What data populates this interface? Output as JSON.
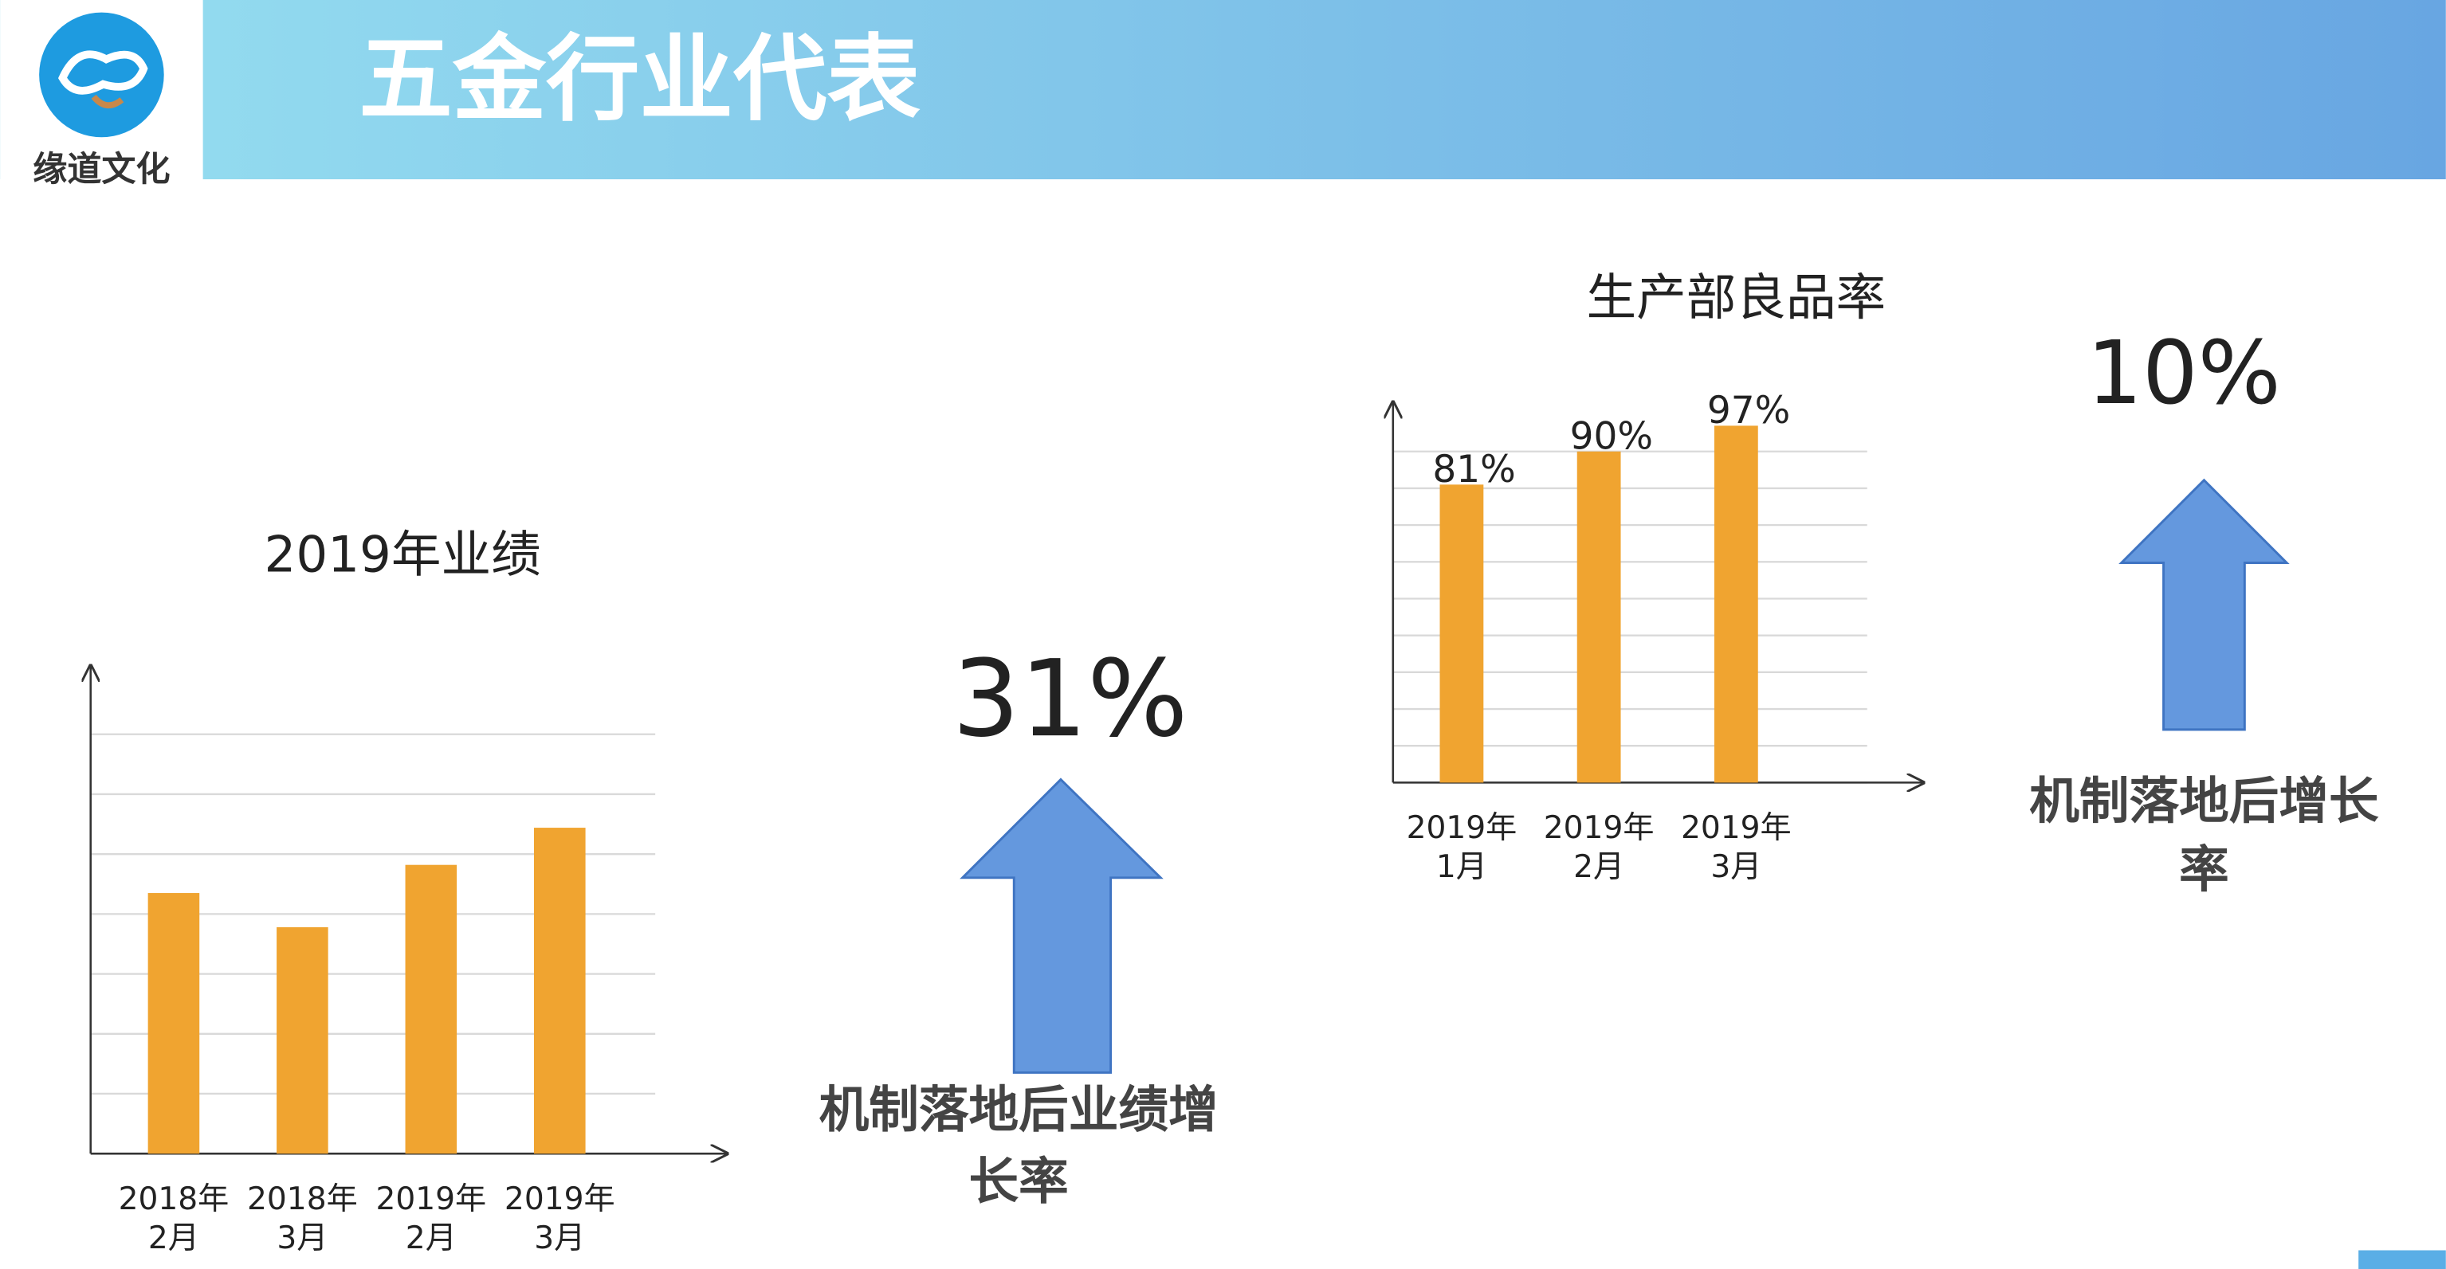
{
  "header": {
    "title": "五金行业代表",
    "logo_text": "缘道文化"
  },
  "chart_data": [
    {
      "type": "bar",
      "title": "2019年业绩",
      "categories": [
        "2018年2月",
        "2018年3月",
        "2019年2月",
        "2019年3月"
      ],
      "values": [
        4.35,
        3.78,
        4.82,
        5.44
      ],
      "color": "#f0a430",
      "ylim": [
        0,
        7
      ],
      "yticks": [
        0,
        1,
        2,
        3,
        4,
        5,
        6,
        7
      ],
      "grid": true
    },
    {
      "type": "bar",
      "title": "生产部良品率",
      "categories": [
        "2019年1月",
        "2019年2月",
        "2019年3月"
      ],
      "values": [
        81,
        90,
        97
      ],
      "value_labels": [
        "81%",
        "90%",
        "97%"
      ],
      "color": "#f0a430",
      "ylim": [
        0,
        100
      ],
      "yticks": [
        0,
        10,
        20,
        30,
        40,
        50,
        60,
        70,
        80,
        90
      ],
      "grid": true
    }
  ],
  "highlights": [
    {
      "figure": "31%",
      "caption": [
        "机制落地后业绩增",
        "长率"
      ]
    },
    {
      "figure": "10%",
      "caption": [
        "机制落地后增长",
        "率"
      ]
    }
  ]
}
